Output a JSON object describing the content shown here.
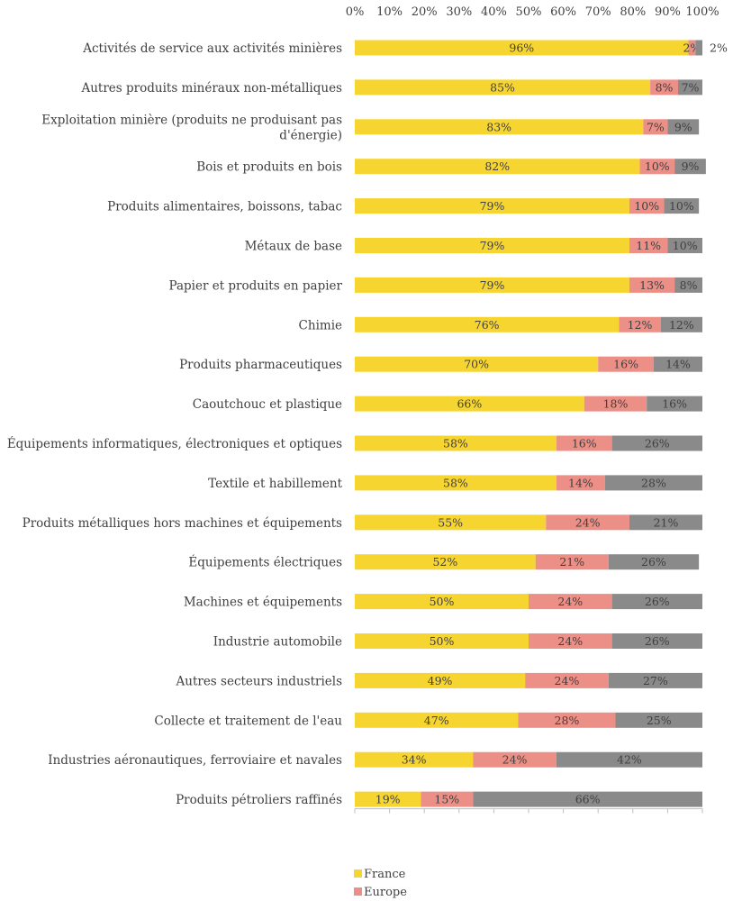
{
  "chart_data": {
    "type": "bar",
    "orientation": "horizontal",
    "stacked": true,
    "xlim": [
      0,
      100
    ],
    "x_ticks": [
      "0%",
      "10%",
      "20%",
      "30%",
      "40%",
      "50%",
      "60%",
      "70%",
      "80%",
      "90%",
      "100%"
    ],
    "x_axis_position": "top",
    "grid": false,
    "legend_position": "bottom-left",
    "categories": [
      "Activités de service aux activités minières",
      "Autres produits minéraux non-métalliques",
      "Exploitation minière (produits ne produisant pas d'énergie)",
      "Bois et produits en bois",
      "Produits alimentaires, boissons, tabac",
      "Métaux de base",
      "Papier et produits en papier",
      "Chimie",
      "Produits pharmaceutiques",
      "Caoutchouc et plastique",
      "Équipements informatiques, électroniques et optiques",
      "Textile et habillement",
      "Produits métalliques hors machines et équipements",
      "Équipements électriques",
      "Machines et équipements",
      "Industrie automobile",
      "Autres secteurs industriels",
      "Collecte et traitement de l'eau",
      "Industries aéronautiques, ferroviaire et navales",
      "Produits pétroliers raffinés"
    ],
    "category_lines": [
      [
        "Activités de service aux activités minières"
      ],
      [
        "Autres produits minéraux non-métalliques"
      ],
      [
        "Exploitation minière (produits ne produisant pas",
        "d'énergie)"
      ],
      [
        "Bois et produits en bois"
      ],
      [
        "Produits alimentaires, boissons, tabac"
      ],
      [
        "Métaux de base"
      ],
      [
        "Papier et produits en papier"
      ],
      [
        "Chimie"
      ],
      [
        "Produits pharmaceutiques"
      ],
      [
        "Caoutchouc et plastique"
      ],
      [
        "Équipements informatiques, électroniques et optiques"
      ],
      [
        "Textile et habillement"
      ],
      [
        "Produits métalliques hors machines et équipements"
      ],
      [
        "Équipements électriques"
      ],
      [
        "Machines et équipements"
      ],
      [
        "Industrie automobile"
      ],
      [
        "Autres secteurs industriels"
      ],
      [
        "Collecte et traitement de l'eau"
      ],
      [
        "Industries aéronautiques, ferroviaire et navales"
      ],
      [
        "Produits pétroliers raffinés"
      ]
    ],
    "series": [
      {
        "name": "France",
        "color": "#f7d531",
        "values": [
          96,
          85,
          83,
          82,
          79,
          79,
          79,
          76,
          70,
          66,
          58,
          58,
          55,
          52,
          50,
          50,
          49,
          47,
          34,
          19
        ],
        "labels": [
          "96%",
          "85%",
          "83%",
          "82%",
          "79%",
          "79%",
          "79%",
          "76%",
          "70%",
          "66%",
          "58%",
          "58%",
          "55%",
          "52%",
          "50%",
          "50%",
          "49%",
          "47%",
          "34%",
          "19%"
        ]
      },
      {
        "name": "Europe",
        "color": "#ec8f86",
        "values": [
          2,
          8,
          7,
          10,
          10,
          11,
          13,
          12,
          16,
          18,
          16,
          14,
          24,
          21,
          24,
          24,
          24,
          28,
          24,
          15
        ],
        "labels": [
          "2%",
          "8%",
          "7%",
          "10%",
          "10%",
          "11%",
          "13%",
          "12%",
          "16%",
          "18%",
          "16%",
          "14%",
          "24%",
          "21%",
          "24%",
          "24%",
          "24%",
          "28%",
          "24%",
          "15%"
        ]
      },
      {
        "color": "#8a8a8a",
        "values": [
          2,
          7,
          9,
          9,
          10,
          10,
          8,
          12,
          14,
          16,
          26,
          28,
          21,
          26,
          26,
          26,
          27,
          25,
          42,
          66
        ],
        "labels": [
          "2%",
          "7%",
          "9%",
          "9%",
          "10%",
          "10%",
          "8%",
          "12%",
          "14%",
          "16%",
          "26%",
          "28%",
          "21%",
          "26%",
          "26%",
          "26%",
          "27%",
          "25%",
          "42%",
          "66%"
        ]
      }
    ],
    "legend": [
      "France",
      "Europe"
    ]
  }
}
